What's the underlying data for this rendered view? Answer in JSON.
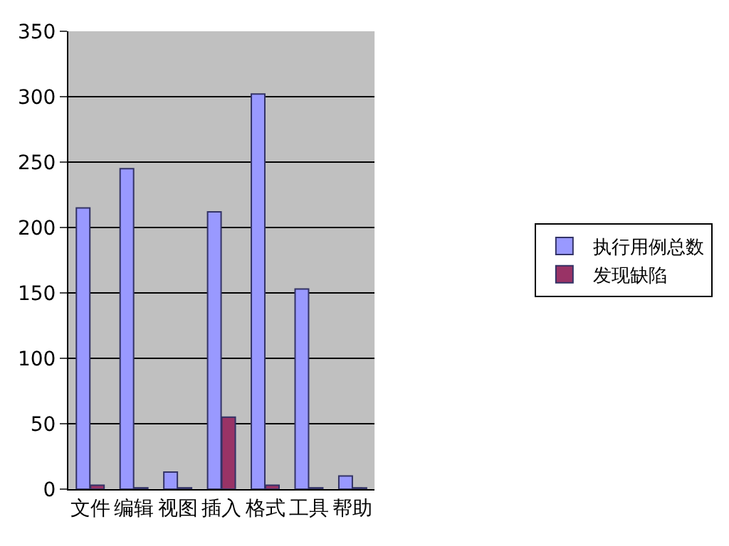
{
  "chart_data": {
    "type": "bar",
    "categories": [
      "文件",
      "编辑",
      "视图",
      "插入",
      "格式",
      "工具",
      "帮助"
    ],
    "series": [
      {
        "name": "执行用例总数",
        "color": "#9999ff",
        "values": [
          215,
          245,
          13,
          212,
          302,
          153,
          10
        ]
      },
      {
        "name": "发现缺陷",
        "color": "#993366",
        "values": [
          3,
          1,
          1,
          55,
          3,
          1,
          1
        ]
      }
    ],
    "ylim": [
      0,
      350
    ],
    "yticks": [
      0,
      50,
      100,
      150,
      200,
      250,
      300,
      350
    ],
    "grid": "y",
    "legend": "right"
  }
}
